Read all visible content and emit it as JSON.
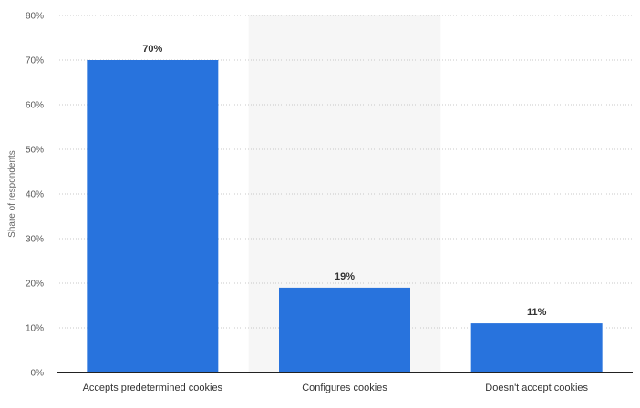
{
  "chart_data": {
    "type": "bar",
    "categories": [
      "Accepts predetermined cookies",
      "Configures cookies",
      "Doesn't accept cookies"
    ],
    "values": [
      70,
      19,
      11
    ],
    "value_labels": [
      "70%",
      "19%",
      "11%"
    ],
    "title": "",
    "xlabel": "",
    "ylabel": "Share of respondents",
    "ylim": [
      0,
      80
    ],
    "yticks": [
      0,
      10,
      20,
      30,
      40,
      50,
      60,
      70,
      80
    ],
    "ytick_labels": [
      "0%",
      "10%",
      "20%",
      "30%",
      "40%",
      "50%",
      "60%",
      "70%",
      "80%"
    ],
    "grid": true,
    "highlighted_category_index": 1,
    "colors": {
      "bar": "#2873dd",
      "highlight_band": "#f6f6f6",
      "grid": "#c8c8c8",
      "axis": "#222222"
    }
  }
}
